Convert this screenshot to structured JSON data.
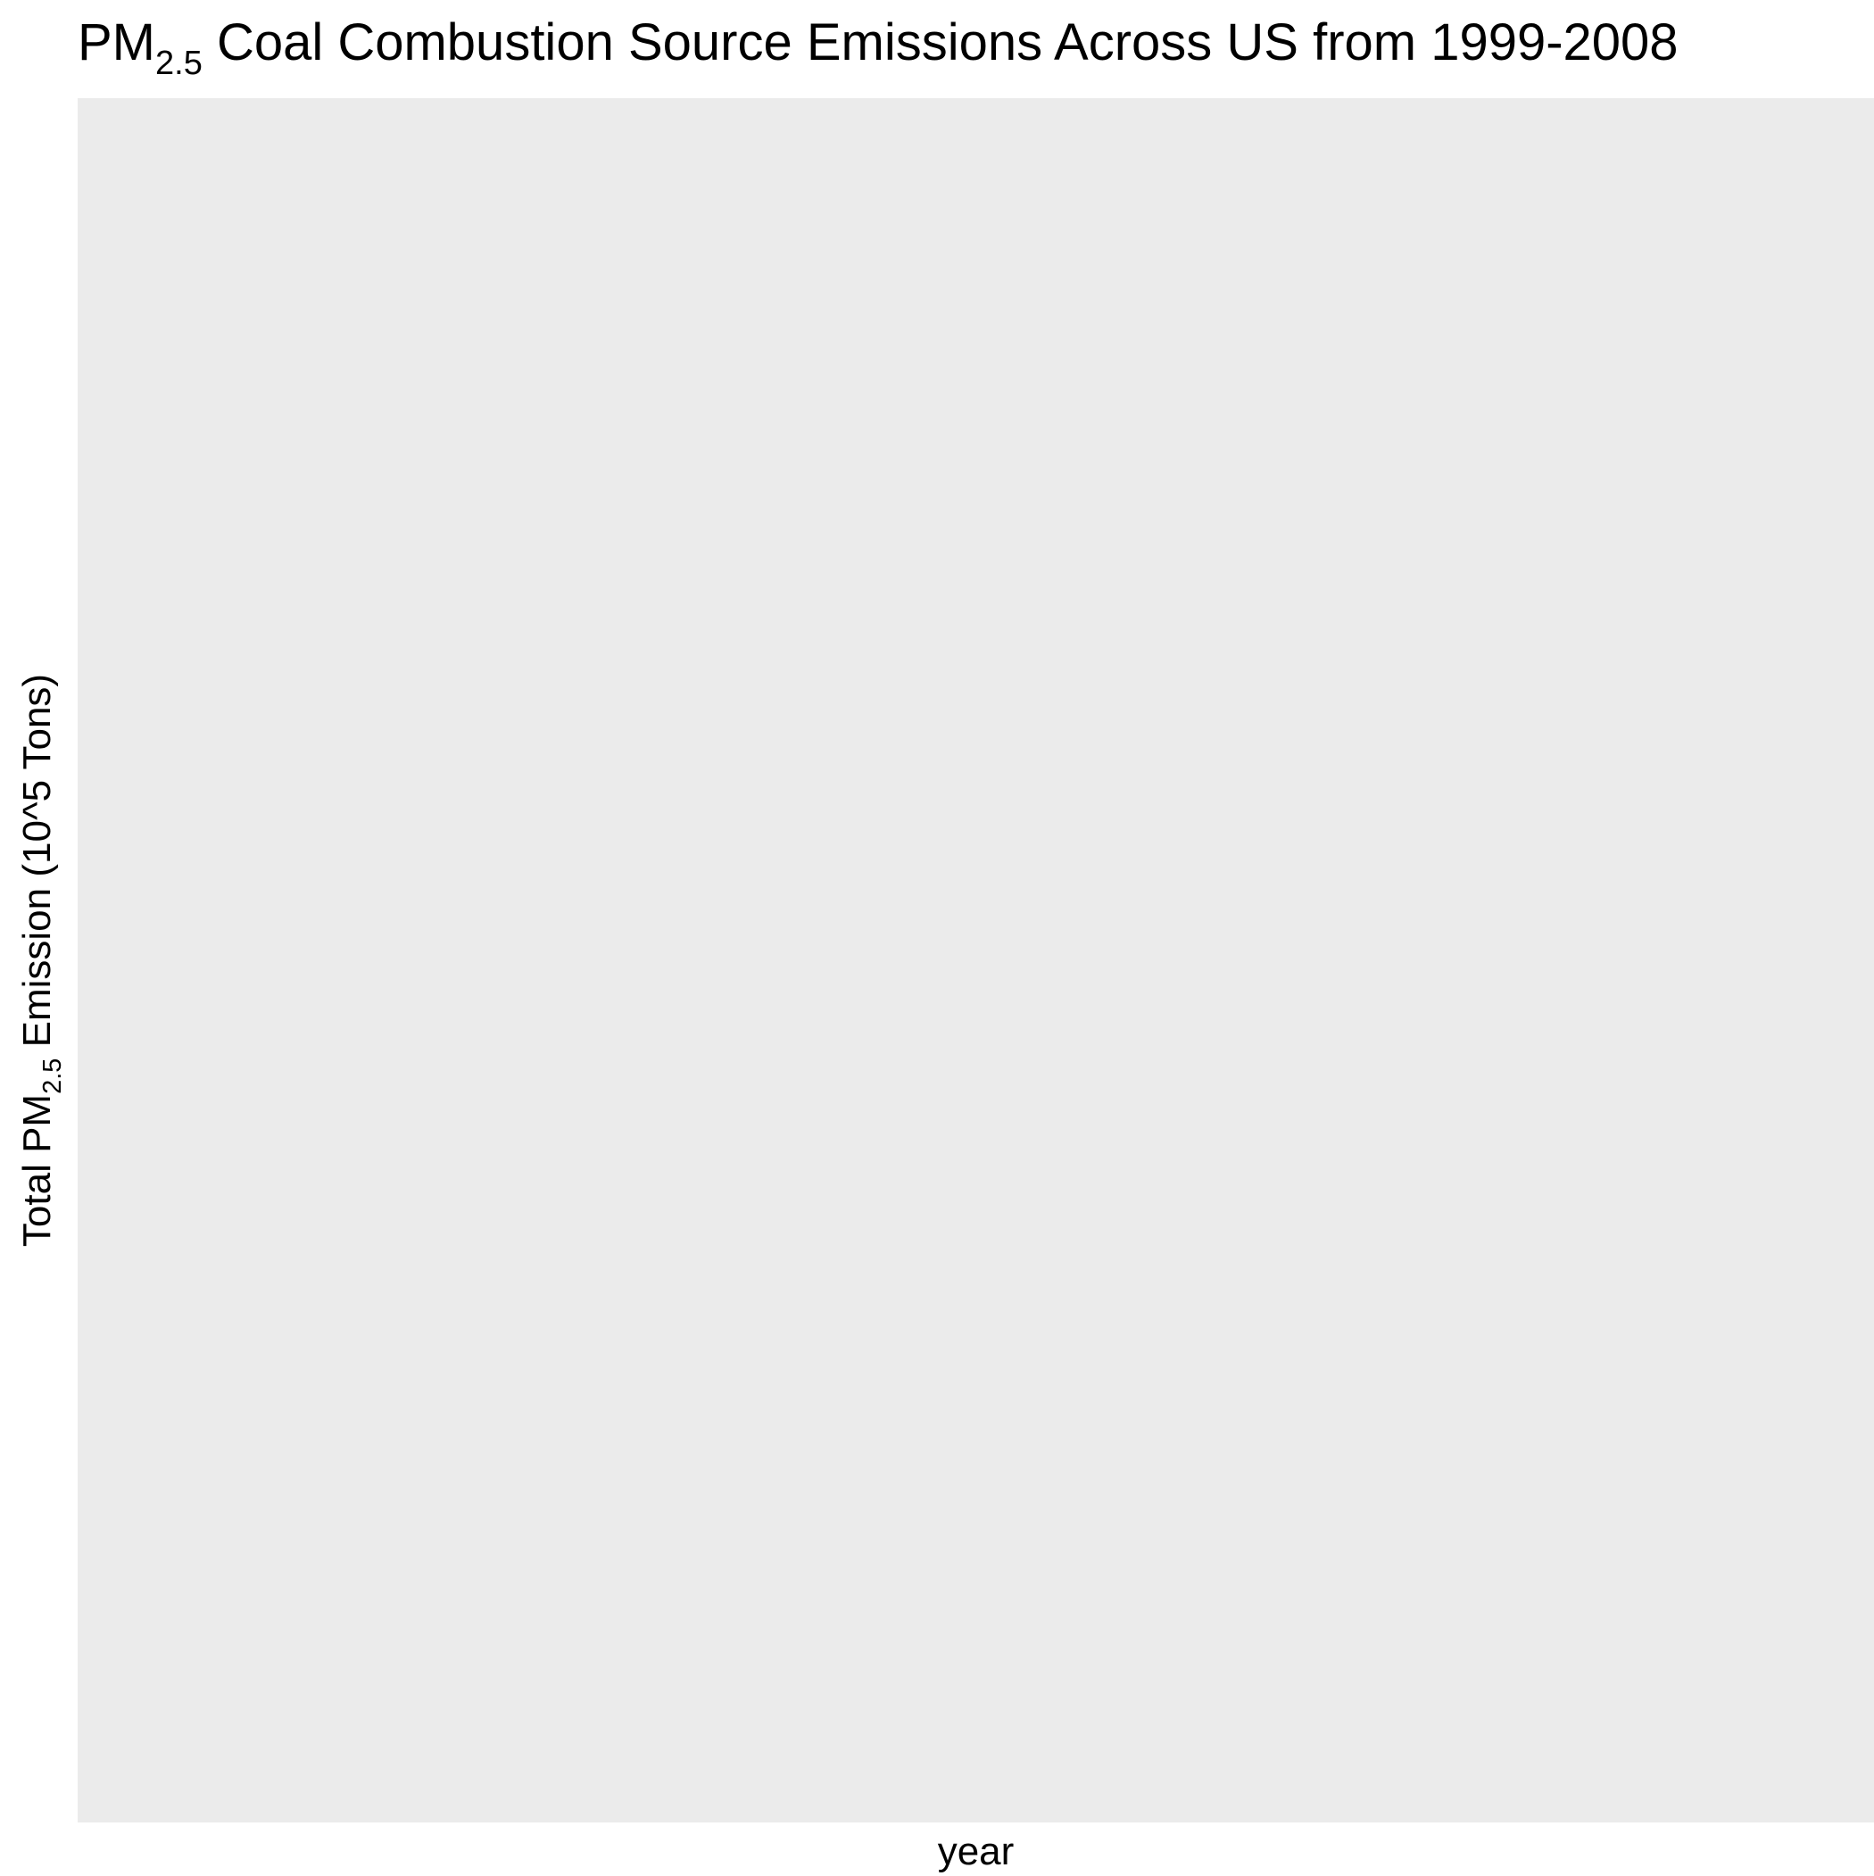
{
  "chart_data": {
    "type": "bar",
    "title": {
      "prefix": "PM",
      "subscript": "2.5",
      "suffix": " Coal Combustion Source Emissions Across US from 1999-2008"
    },
    "xlabel": "year",
    "ylabel": {
      "prefix": "Total PM",
      "subscript": "2.5",
      "suffix": " Emission (10^5 Tons)"
    },
    "categories": [],
    "values": [],
    "grid": false,
    "legend": "none",
    "panel_background": "#ebebeb"
  }
}
